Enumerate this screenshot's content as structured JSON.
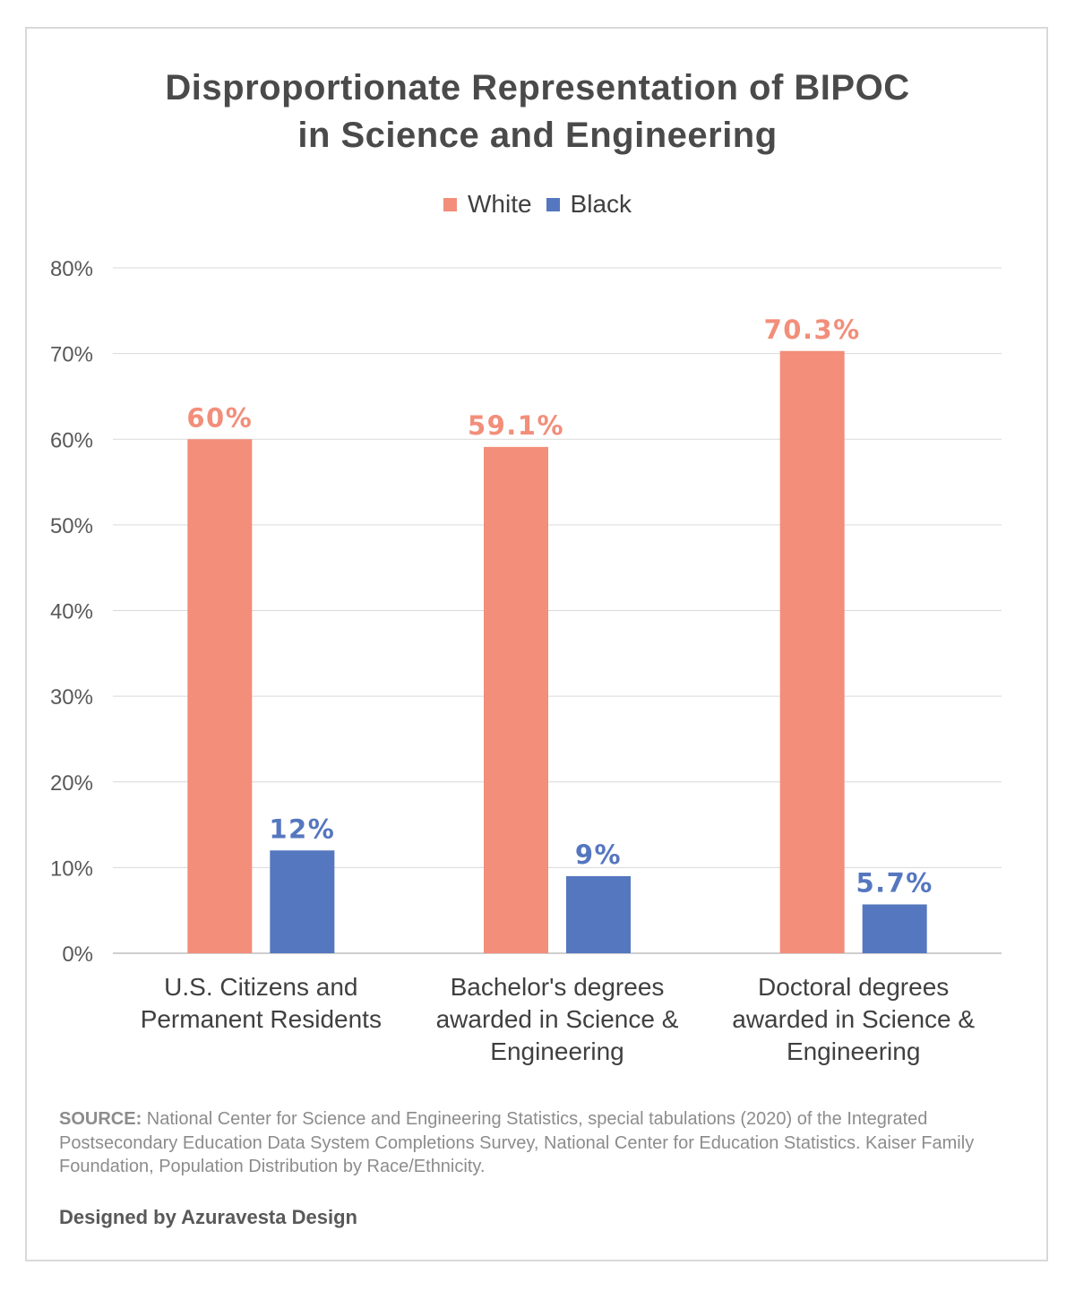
{
  "title_lines": [
    "Disproportionate Representation of BIPOC",
    "in Science and Engineering"
  ],
  "source_label": "SOURCE:",
  "source_text": " National Center for Science and Engineering Statistics, special tabulations (2020) of the Integrated Postsecondary Education Data System Completions Survey, National Center for Education Statistics. Kaiser Family Foundation, Population Distribution by Race/Ethnicity.",
  "credit": "Designed by Azuravesta Design",
  "chart_data": {
    "type": "bar",
    "title": "Disproportionate Representation of BIPOC in Science and Engineering",
    "categories": [
      [
        "U.S. Citizens and",
        "Permanent Residents"
      ],
      [
        "Bachelor's degrees",
        "awarded in Science &",
        "Engineering"
      ],
      [
        "Doctoral degrees",
        "awarded in Science &",
        "Engineering"
      ]
    ],
    "series": [
      {
        "name": "White",
        "color": "#f28e7a",
        "values": [
          60,
          59.1,
          70.3
        ],
        "labels": [
          "60%",
          "59.1%",
          "70.3%"
        ]
      },
      {
        "name": "Black",
        "color": "#5577bf",
        "values": [
          12,
          9,
          5.7
        ],
        "labels": [
          "12%",
          "9%",
          "5.7%"
        ]
      }
    ],
    "ylim": [
      0,
      80
    ],
    "yticks": [
      0,
      10,
      20,
      30,
      40,
      50,
      60,
      70,
      80
    ],
    "ytick_labels": [
      "0%",
      "10%",
      "20%",
      "30%",
      "40%",
      "50%",
      "60%",
      "70%",
      "80%"
    ],
    "grid": true,
    "legend_position": "top-center"
  }
}
